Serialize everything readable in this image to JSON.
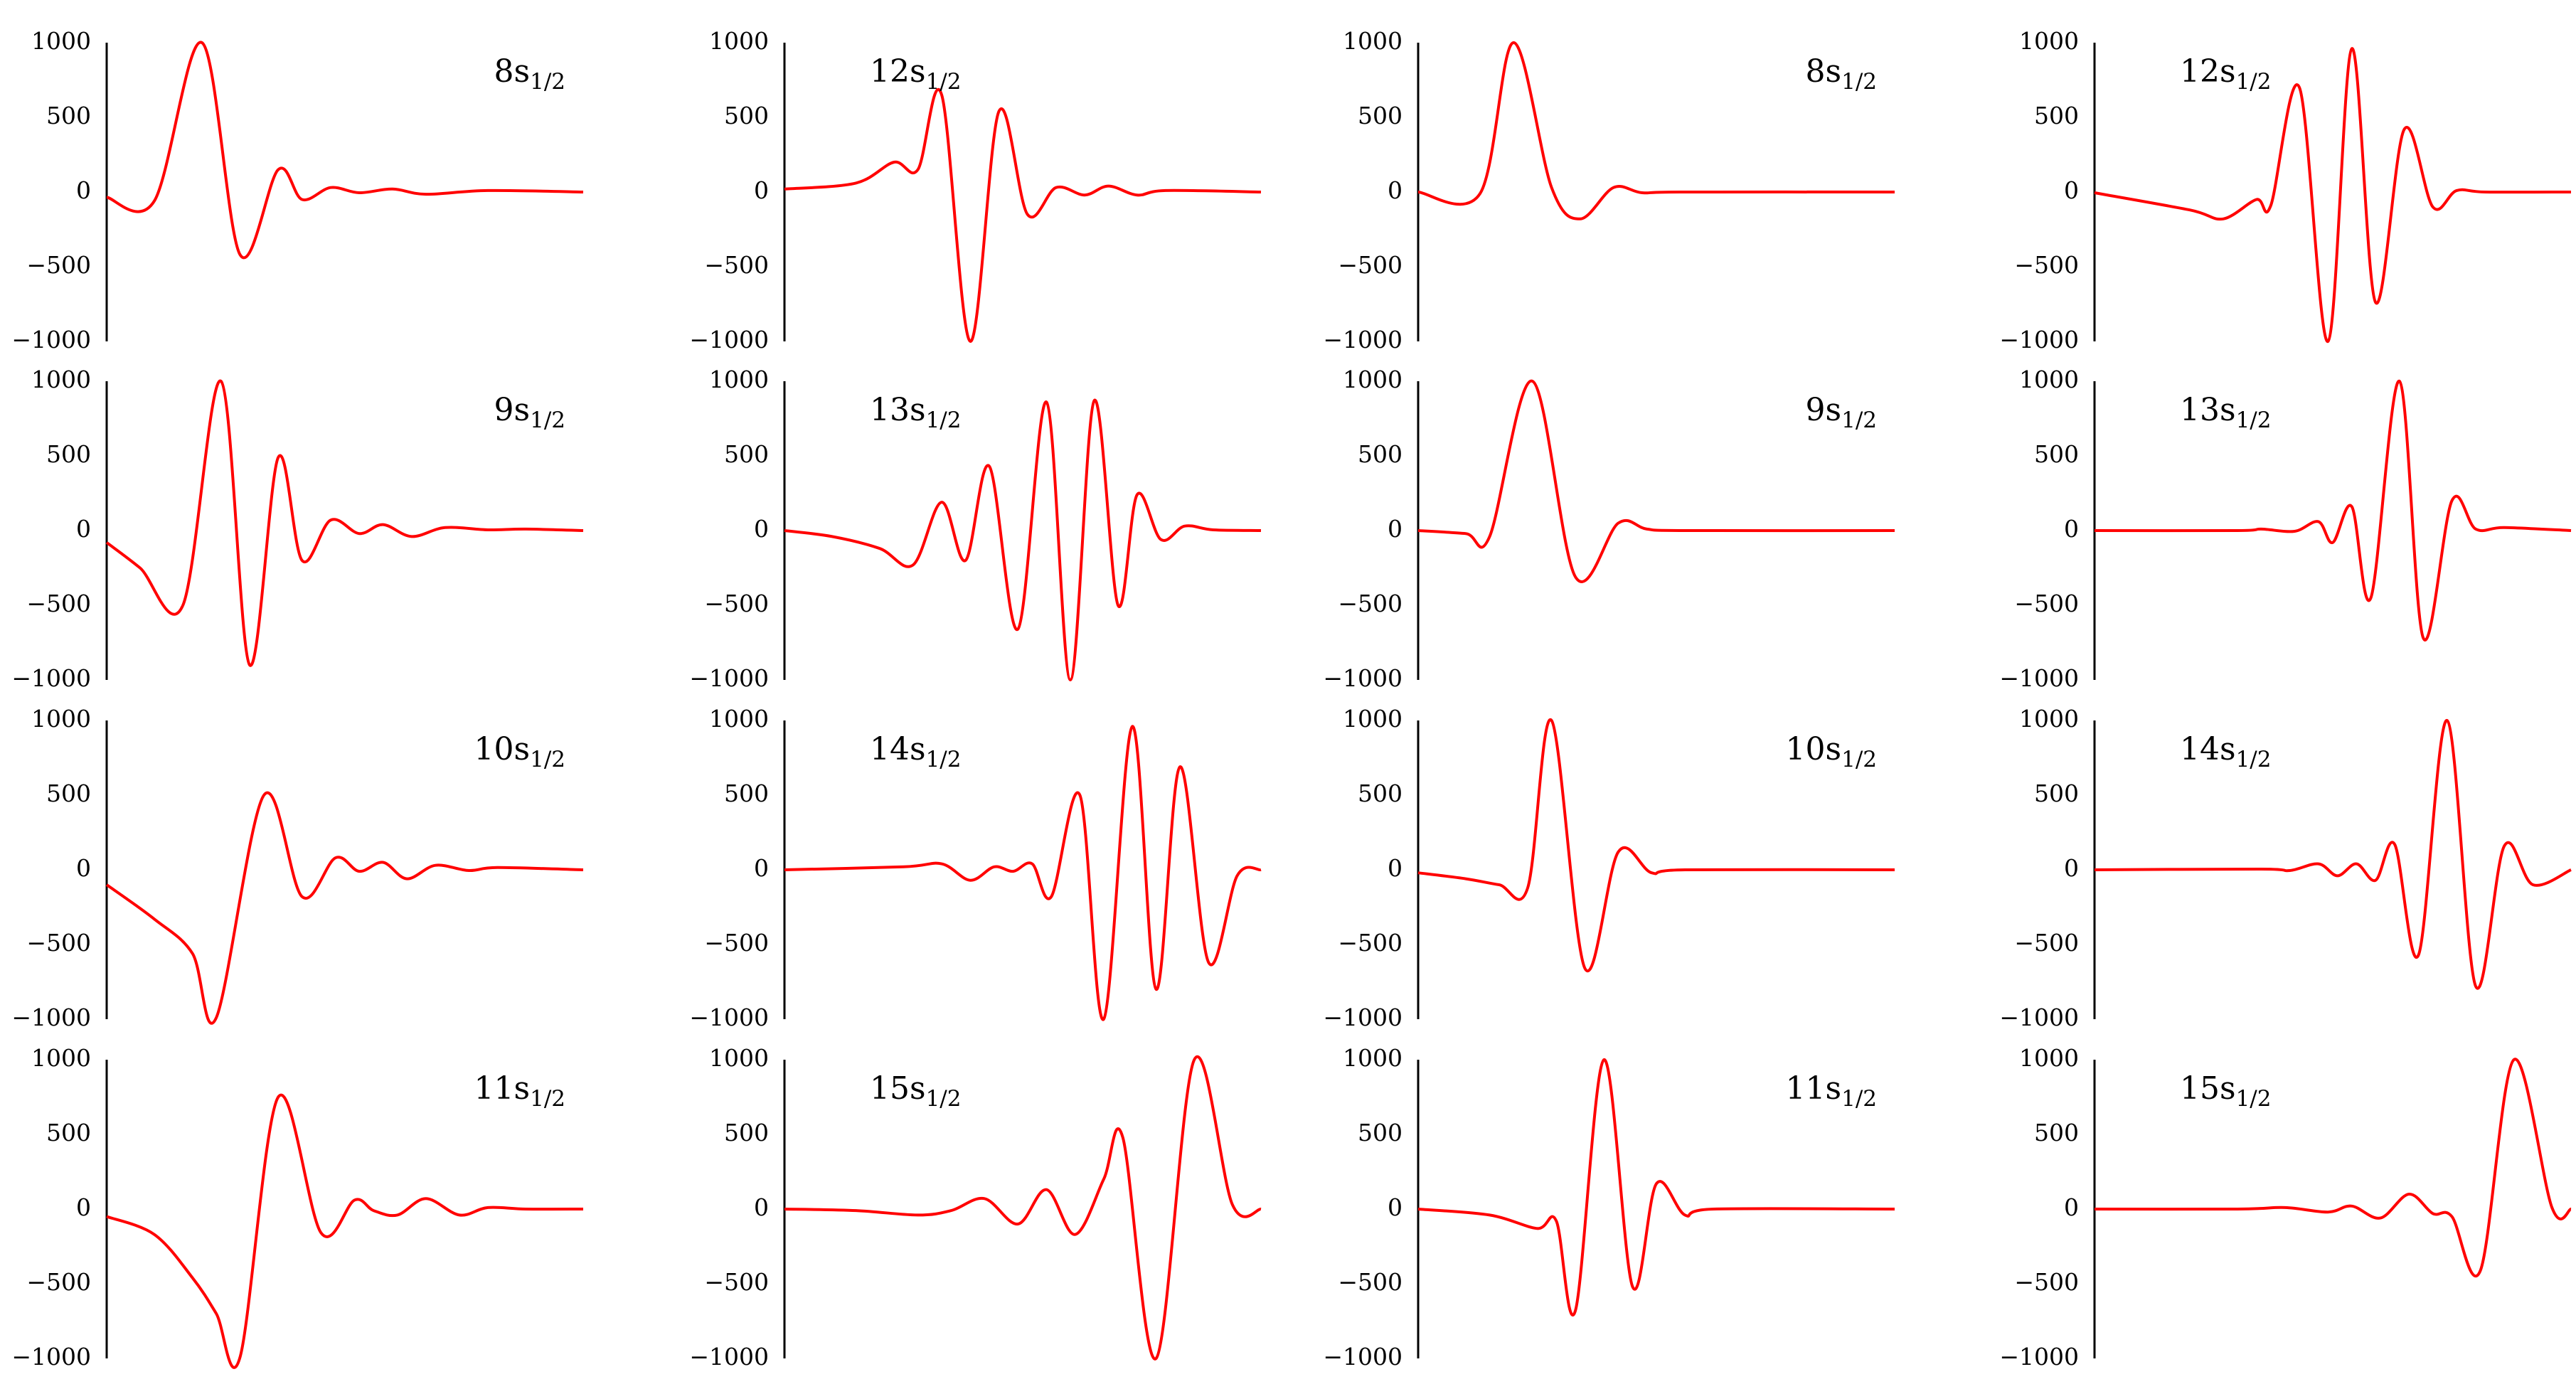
{
  "chart_data": {
    "type": "line",
    "layout": "4x4 small multiples",
    "color": "#ff0000",
    "ylim": [
      -1000,
      1000
    ],
    "yticks": [
      1000,
      500,
      0,
      -500,
      -1000
    ],
    "grid": false,
    "legend": "none",
    "panels": [
      {
        "label_main": "8s",
        "label_sub": "1/2",
        "label_align": "right",
        "peaks": [
          [
            0.0,
            -35
          ],
          [
            0.1,
            -60
          ],
          [
            0.2,
            1000
          ],
          [
            0.28,
            -420
          ],
          [
            0.36,
            150
          ],
          [
            0.41,
            -50
          ],
          [
            0.47,
            30
          ],
          [
            0.53,
            -5
          ],
          [
            0.6,
            20
          ],
          [
            0.67,
            -15
          ],
          [
            0.8,
            10
          ],
          [
            1.0,
            0
          ]
        ]
      },
      {
        "label_main": "12s",
        "label_sub": "1/2",
        "label_align": "left",
        "peaks": [
          [
            0.0,
            20
          ],
          [
            0.15,
            60
          ],
          [
            0.23,
            200
          ],
          [
            0.28,
            150
          ],
          [
            0.33,
            650
          ],
          [
            0.39,
            -1000
          ],
          [
            0.45,
            540
          ],
          [
            0.51,
            -150
          ],
          [
            0.57,
            30
          ],
          [
            0.63,
            -20
          ],
          [
            0.68,
            40
          ],
          [
            0.74,
            -20
          ],
          [
            0.8,
            10
          ],
          [
            1.0,
            0
          ]
        ]
      },
      {
        "label_main": "8s",
        "label_sub": "1/2",
        "label_align": "right",
        "peaks": [
          [
            0.0,
            0
          ],
          [
            0.13,
            -10
          ],
          [
            0.2,
            1000
          ],
          [
            0.28,
            30
          ],
          [
            0.34,
            -180
          ],
          [
            0.41,
            30
          ],
          [
            0.47,
            -5
          ],
          [
            0.55,
            0
          ],
          [
            1.0,
            0
          ]
        ]
      },
      {
        "label_main": "12s",
        "label_sub": "1/2",
        "label_align": "left",
        "peaks": [
          [
            0.0,
            -5
          ],
          [
            0.2,
            -120
          ],
          [
            0.27,
            -180
          ],
          [
            0.34,
            -50
          ],
          [
            0.37,
            -90
          ],
          [
            0.43,
            700
          ],
          [
            0.49,
            -1000
          ],
          [
            0.54,
            960
          ],
          [
            0.59,
            -740
          ],
          [
            0.65,
            420
          ],
          [
            0.71,
            -100
          ],
          [
            0.76,
            10
          ],
          [
            0.82,
            0
          ],
          [
            1.0,
            0
          ]
        ]
      },
      {
        "label_main": "9s",
        "label_sub": "1/2",
        "label_align": "right",
        "peaks": [
          [
            0.0,
            -80
          ],
          [
            0.07,
            -250
          ],
          [
            0.16,
            -500
          ],
          [
            0.24,
            1000
          ],
          [
            0.3,
            -900
          ],
          [
            0.36,
            490
          ],
          [
            0.41,
            -200
          ],
          [
            0.47,
            70
          ],
          [
            0.53,
            -20
          ],
          [
            0.58,
            40
          ],
          [
            0.64,
            -40
          ],
          [
            0.71,
            20
          ],
          [
            0.8,
            5
          ],
          [
            0.88,
            10
          ],
          [
            1.0,
            0
          ]
        ]
      },
      {
        "label_main": "13s",
        "label_sub": "1/2",
        "label_align": "left",
        "peaks": [
          [
            0.0,
            0
          ],
          [
            0.1,
            -40
          ],
          [
            0.2,
            -120
          ],
          [
            0.27,
            -230
          ],
          [
            0.33,
            190
          ],
          [
            0.38,
            -200
          ],
          [
            0.43,
            430
          ],
          [
            0.49,
            -660
          ],
          [
            0.55,
            860
          ],
          [
            0.6,
            -1000
          ],
          [
            0.65,
            870
          ],
          [
            0.7,
            -500
          ],
          [
            0.74,
            240
          ],
          [
            0.79,
            -60
          ],
          [
            0.84,
            30
          ],
          [
            0.9,
            5
          ],
          [
            1.0,
            0
          ]
        ]
      },
      {
        "label_main": "9s",
        "label_sub": "1/2",
        "label_align": "right",
        "peaks": [
          [
            0.0,
            0
          ],
          [
            0.1,
            -20
          ],
          [
            0.15,
            -40
          ],
          [
            0.24,
            1000
          ],
          [
            0.33,
            -310
          ],
          [
            0.42,
            50
          ],
          [
            0.48,
            10
          ],
          [
            0.56,
            0
          ],
          [
            1.0,
            0
          ]
        ]
      },
      {
        "label_main": "13s",
        "label_sub": "1/2",
        "label_align": "left",
        "peaks": [
          [
            0.0,
            0
          ],
          [
            0.3,
            0
          ],
          [
            0.35,
            10
          ],
          [
            0.42,
            -5
          ],
          [
            0.47,
            60
          ],
          [
            0.5,
            -80
          ],
          [
            0.54,
            160
          ],
          [
            0.58,
            -450
          ],
          [
            0.64,
            1000
          ],
          [
            0.69,
            -720
          ],
          [
            0.75,
            200
          ],
          [
            0.8,
            10
          ],
          [
            0.86,
            20
          ],
          [
            1.0,
            0
          ]
        ]
      },
      {
        "label_main": "10s",
        "label_sub": "1/2",
        "label_align": "right",
        "peaks": [
          [
            0.0,
            -100
          ],
          [
            0.1,
            -330
          ],
          [
            0.18,
            -560
          ],
          [
            0.23,
            -990
          ],
          [
            0.33,
            500
          ],
          [
            0.41,
            -180
          ],
          [
            0.48,
            80
          ],
          [
            0.53,
            -10
          ],
          [
            0.58,
            50
          ],
          [
            0.63,
            -60
          ],
          [
            0.69,
            30
          ],
          [
            0.76,
            -5
          ],
          [
            0.82,
            15
          ],
          [
            1.0,
            0
          ]
        ]
      },
      {
        "label_main": "14s",
        "label_sub": "1/2",
        "label_align": "left",
        "peaks": [
          [
            0.0,
            0
          ],
          [
            0.25,
            20
          ],
          [
            0.33,
            40
          ],
          [
            0.39,
            -70
          ],
          [
            0.44,
            20
          ],
          [
            0.48,
            -10
          ],
          [
            0.52,
            40
          ],
          [
            0.56,
            -180
          ],
          [
            0.62,
            500
          ],
          [
            0.67,
            -1000
          ],
          [
            0.73,
            960
          ],
          [
            0.78,
            -800
          ],
          [
            0.83,
            690
          ],
          [
            0.89,
            -620
          ],
          [
            0.95,
            -40
          ],
          [
            1.0,
            0
          ]
        ]
      },
      {
        "label_main": "10s",
        "label_sub": "1/2",
        "label_align": "right",
        "peaks": [
          [
            0.0,
            -20
          ],
          [
            0.1,
            -60
          ],
          [
            0.17,
            -100
          ],
          [
            0.23,
            -120
          ],
          [
            0.28,
            1000
          ],
          [
            0.35,
            -660
          ],
          [
            0.42,
            120
          ],
          [
            0.49,
            -20
          ],
          [
            0.56,
            0
          ],
          [
            1.0,
            0
          ]
        ]
      },
      {
        "label_main": "14s",
        "label_sub": "1/2",
        "label_align": "left",
        "peaks": [
          [
            0.0,
            0
          ],
          [
            0.35,
            5
          ],
          [
            0.41,
            -5
          ],
          [
            0.47,
            40
          ],
          [
            0.51,
            -40
          ],
          [
            0.55,
            40
          ],
          [
            0.59,
            -70
          ],
          [
            0.63,
            170
          ],
          [
            0.68,
            -570
          ],
          [
            0.74,
            1000
          ],
          [
            0.8,
            -780
          ],
          [
            0.86,
            160
          ],
          [
            0.92,
            -100
          ],
          [
            1.0,
            0
          ]
        ]
      },
      {
        "label_main": "11s",
        "label_sub": "1/2",
        "label_align": "right",
        "peaks": [
          [
            0.0,
            -50
          ],
          [
            0.1,
            -170
          ],
          [
            0.18,
            -460
          ],
          [
            0.23,
            -700
          ],
          [
            0.28,
            -990
          ],
          [
            0.36,
            750
          ],
          [
            0.45,
            -160
          ],
          [
            0.52,
            60
          ],
          [
            0.56,
            -10
          ],
          [
            0.61,
            -40
          ],
          [
            0.67,
            70
          ],
          [
            0.74,
            -40
          ],
          [
            0.8,
            10
          ],
          [
            0.88,
            0
          ],
          [
            1.0,
            0
          ]
        ]
      },
      {
        "label_main": "15s",
        "label_sub": "1/2",
        "label_align": "left",
        "peaks": [
          [
            0.0,
            0
          ],
          [
            0.15,
            -10
          ],
          [
            0.28,
            -40
          ],
          [
            0.35,
            -10
          ],
          [
            0.42,
            70
          ],
          [
            0.49,
            -100
          ],
          [
            0.55,
            130
          ],
          [
            0.61,
            -170
          ],
          [
            0.67,
            200
          ],
          [
            0.71,
            480
          ],
          [
            0.78,
            -1000
          ],
          [
            0.86,
            1000
          ],
          [
            0.94,
            30
          ],
          [
            1.0,
            0
          ]
        ]
      },
      {
        "label_main": "11s",
        "label_sub": "1/2",
        "label_align": "right",
        "peaks": [
          [
            0.0,
            0
          ],
          [
            0.15,
            -40
          ],
          [
            0.25,
            -130
          ],
          [
            0.29,
            -80
          ],
          [
            0.33,
            -680
          ],
          [
            0.39,
            1000
          ],
          [
            0.45,
            -520
          ],
          [
            0.5,
            170
          ],
          [
            0.56,
            -40
          ],
          [
            0.62,
            0
          ],
          [
            1.0,
            0
          ]
        ]
      },
      {
        "label_main": "15s",
        "label_sub": "1/2",
        "label_align": "left",
        "peaks": [
          [
            0.0,
            0
          ],
          [
            0.3,
            0
          ],
          [
            0.4,
            10
          ],
          [
            0.49,
            -20
          ],
          [
            0.54,
            20
          ],
          [
            0.6,
            -60
          ],
          [
            0.66,
            100
          ],
          [
            0.71,
            -30
          ],
          [
            0.75,
            -50
          ],
          [
            0.81,
            -410
          ],
          [
            0.88,
            1000
          ],
          [
            0.96,
            10
          ],
          [
            1.0,
            0
          ]
        ]
      }
    ]
  }
}
